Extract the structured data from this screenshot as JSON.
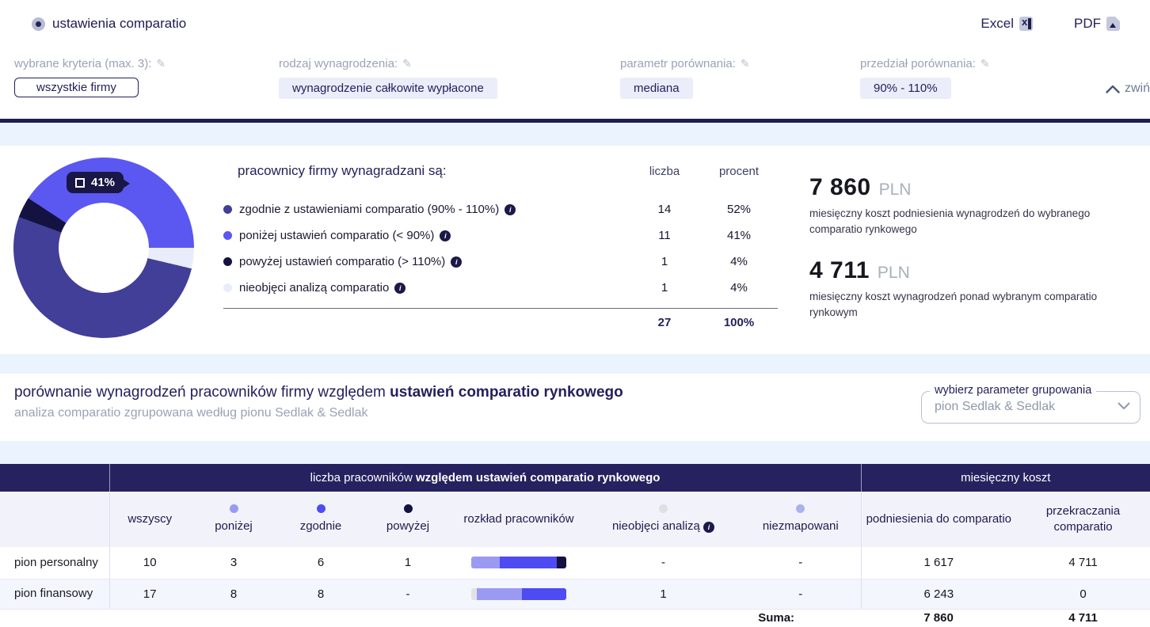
{
  "header": {
    "title": "ustawienia comparatio",
    "excel_label": "Excel",
    "pdf_label": "PDF"
  },
  "filters": {
    "criteria": {
      "label": "wybrane kryteria (max. 3):",
      "value": "wszystkie firmy"
    },
    "salary_type": {
      "label": "rodzaj wynagrodzenia:",
      "value": "wynagrodzenie całkowite wypłacone"
    },
    "comparison_param": {
      "label": "parametr porównania:",
      "value": "mediana"
    },
    "comparison_range": {
      "label": "przedział porównania:",
      "value": "90% - 110%"
    },
    "collapse_label": "zwiń"
  },
  "chart_data": {
    "type": "pie",
    "title": "pracownicy firmy wynagradzani są:",
    "columns": {
      "count": "liczba",
      "percent": "procent"
    },
    "tooltip_label": "41%",
    "slices": [
      {
        "label": "zgodnie z ustawieniami comparatio (90% - 110%)",
        "count": 14,
        "percent": "52%",
        "color": "#413f98"
      },
      {
        "label": "poniżej ustawień comparatio (< 90%)",
        "count": 11,
        "percent": "41%",
        "color": "#5a58f0"
      },
      {
        "label": "powyżej ustawień comparatio (> 110%)",
        "count": 1,
        "percent": "4%",
        "color": "#141240"
      },
      {
        "label": "nieobjęci analizą comparatio",
        "count": 1,
        "percent": "4%",
        "color": "#e9edfb"
      }
    ],
    "donut": {
      "start_deg": 90,
      "order": [
        3,
        0,
        2,
        1
      ],
      "hole_ratio": 0.5
    },
    "total": {
      "count": "27",
      "percent": "100%"
    }
  },
  "costs": [
    {
      "amount": "7 860",
      "currency": "PLN",
      "description": "miesięczny koszt podniesienia wynagrodzeń do wybranego comparatio rynkowego"
    },
    {
      "amount": "4 711",
      "currency": "PLN",
      "description": "miesięczny koszt wynagrodzeń ponad wybranym comparatio rynkowym"
    }
  ],
  "section": {
    "title_normal": "porównanie wynagrodzeń pracowników firmy względem ",
    "title_bold": "ustawień comparatio rynkowego",
    "subtitle": "analiza comparatio zgrupowana według pionu Sedlak & Sedlak",
    "grouping": {
      "label": "wybierz parameter grupowania",
      "value": "pion Sedlak & Sedlak"
    }
  },
  "table": {
    "group_headers": {
      "employees_normal": "liczba pracowników ",
      "employees_bold": "względem ustawień comparatio rynkowego",
      "cost": "miesięczny koszt"
    },
    "columns": {
      "wszyscy": "wszyscy",
      "ponizej": "poniżej",
      "zgodnie": "zgodnie",
      "powyzej": "powyżej",
      "rozklad": "rozkład pracowników",
      "nieobjeci": "nieobjęci analizą",
      "niezmapowani": "niezmapowani",
      "podniesienia": "podniesienia do comparatio",
      "przekraczania": "przekraczania comparatio"
    },
    "dot_colors": {
      "ponizej": "#9b9af3",
      "zgodnie": "#4d4bf1",
      "powyzej": "#141240",
      "nieobjeci": "#dfdfe3",
      "niezmapowani": "#aab2ee"
    },
    "rows": [
      {
        "name": "pion personalny",
        "values": {
          "wszyscy": "10",
          "ponizej": "3",
          "zgodnie": "6",
          "powyzej": "1",
          "nieobjeci": "-",
          "niezmapowani": "-",
          "podniesienia": "1 617",
          "przekraczania": "4 711"
        },
        "bar": [
          {
            "color": "#9b9af3",
            "pct": 30
          },
          {
            "color": "#4d4bf1",
            "pct": 60
          },
          {
            "color": "#141240",
            "pct": 10
          }
        ]
      },
      {
        "name": "pion finansowy",
        "values": {
          "wszyscy": "17",
          "ponizej": "8",
          "zgodnie": "8",
          "powyzej": "-",
          "nieobjeci": "1",
          "niezmapowani": "-",
          "podniesienia": "6 243",
          "przekraczania": "0"
        },
        "bar": [
          {
            "color": "#e2e2e6",
            "pct": 5.9
          },
          {
            "color": "#9b9af3",
            "pct": 47.05
          },
          {
            "color": "#4d4bf1",
            "pct": 47.05
          }
        ]
      }
    ],
    "footer": {
      "label": "Suma:",
      "podniesienia": "7 860",
      "przekraczania": "4 711"
    }
  },
  "colors": {
    "accent": "#5a58f0",
    "navy": "#23215b",
    "table_header_bg": "#262260",
    "page_bg": "#ebf3fe"
  }
}
